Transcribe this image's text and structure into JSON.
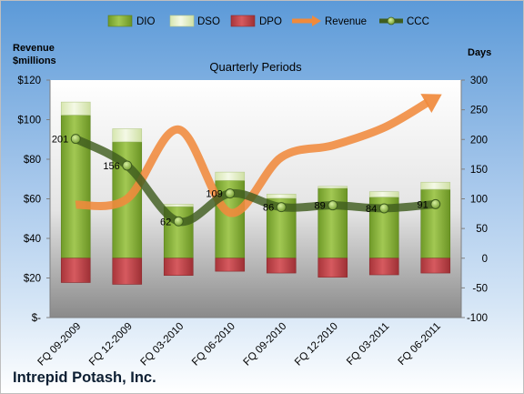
{
  "chart_data": {
    "type": "bar",
    "title": "Quarterly Periods",
    "company": "Intrepid Potash, Inc.",
    "left_axis_title": [
      "Revenue",
      "$millions"
    ],
    "right_axis_title": "Days",
    "categories": [
      "FQ 09-2009",
      "FQ 12-2009",
      "FQ 03-2010",
      "FQ 06-2010",
      "FQ 09-2010",
      "FQ 12-2010",
      "FQ 03-2011",
      "FQ 06-2011"
    ],
    "left_axis": {
      "min": 0,
      "max": 120,
      "step": 20,
      "ticks": [
        "$-",
        "$20",
        "$40",
        "$60",
        "$80",
        "$100",
        "$120"
      ]
    },
    "right_axis": {
      "min": -100,
      "max": 300,
      "step": 50,
      "ticks": [
        "-100",
        "-50",
        "0",
        "50",
        "100",
        "150",
        "200",
        "250",
        "300"
      ]
    },
    "series": [
      {
        "name": "DIO",
        "type": "bar",
        "axis": "right",
        "color": "#7fa92f",
        "values": [
          241,
          196,
          87,
          131,
          101,
          118,
          103,
          116
        ]
      },
      {
        "name": "DSO",
        "type": "bar",
        "axis": "right",
        "color": "#e6f0c9",
        "values": [
          22,
          22,
          4,
          14,
          7,
          3,
          9,
          12
        ]
      },
      {
        "name": "DPO",
        "type": "bar",
        "axis": "right",
        "color": "#c4454a",
        "values": [
          -41,
          -44,
          -29,
          -22,
          -25,
          -32,
          -28,
          -25
        ]
      },
      {
        "name": "Revenue",
        "type": "line",
        "axis": "left",
        "color": "#f08a3c",
        "values": [
          57,
          60,
          95,
          53,
          81,
          87,
          96,
          111
        ]
      },
      {
        "name": "CCC",
        "type": "line",
        "axis": "right",
        "color": "#3f5d1f",
        "values": [
          201,
          156,
          62,
          109,
          86,
          89,
          84,
          91
        ]
      }
    ],
    "data_labels": [
      "201",
      "156",
      "62",
      "109",
      "86",
      "89",
      "84",
      "91"
    ],
    "legend_position": "top",
    "grid": false
  }
}
